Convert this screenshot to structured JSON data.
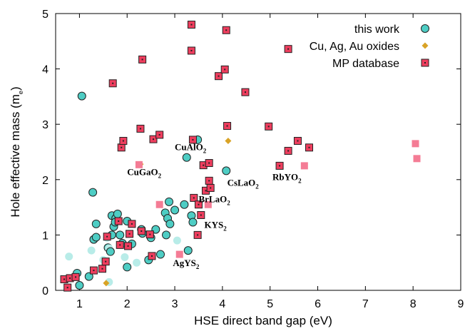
{
  "chart_data": {
    "type": "scatter",
    "xlabel": "HSE direct band gap (eV)",
    "ylabel": "Hole effective mass (m",
    "ylabel_sub": "e",
    "ylabel_close": ")",
    "xlim": [
      0.5,
      9
    ],
    "ylim": [
      0,
      5
    ],
    "xticks": [
      "1",
      "2",
      "3",
      "4",
      "5",
      "6",
      "7",
      "8",
      "9"
    ],
    "yticks": [
      "0",
      "1",
      "2",
      "3",
      "4",
      "5"
    ],
    "legend_position": "top-right",
    "colors": {
      "this_work": "#4ecdc4",
      "this_work_faint": "#b8ece8",
      "oxides": "#d9a326",
      "mp": "#ee3e5e",
      "mp_faint": "#f47c95",
      "outline": "#222222"
    },
    "series": [
      {
        "name": "this work",
        "marker": "circle",
        "points": [
          [
            1.05,
            3.51
          ],
          [
            1.28,
            1.77
          ],
          [
            0.78,
            0.61
          ],
          [
            0.95,
            0.31
          ],
          [
            1.0,
            0.09
          ],
          [
            1.2,
            0.25
          ],
          [
            1.25,
            0.72
          ],
          [
            1.3,
            0.92
          ],
          [
            1.35,
            0.96
          ],
          [
            1.35,
            1.2
          ],
          [
            1.6,
            0.77
          ],
          [
            1.62,
            0.76
          ],
          [
            1.65,
            0.7
          ],
          [
            1.68,
            1.35
          ],
          [
            1.72,
            1.15
          ],
          [
            1.76,
            1.3
          ],
          [
            1.8,
            1.38
          ],
          [
            1.75,
            1.23
          ],
          [
            1.9,
            0.85
          ],
          [
            2.0,
            0.42
          ],
          [
            2.1,
            0.84
          ],
          [
            2.3,
            1.1
          ],
          [
            2.32,
            1.03
          ],
          [
            2.45,
            0.55
          ],
          [
            2.7,
            0.65
          ],
          [
            2.8,
            1.4
          ],
          [
            2.82,
            1.0
          ],
          [
            2.85,
            1.3
          ],
          [
            2.88,
            1.6
          ],
          [
            2.9,
            1.2
          ],
          [
            3.0,
            1.45
          ],
          [
            3.2,
            1.55
          ],
          [
            3.25,
            2.4
          ],
          [
            3.28,
            0.72
          ],
          [
            3.35,
            1.35
          ],
          [
            3.38,
            1.23
          ],
          [
            3.48,
            2.72
          ],
          [
            4.08,
            2.16
          ],
          [
            1.68,
            1.0
          ],
          [
            1.58,
            0.95
          ],
          [
            2.0,
            1.25
          ],
          [
            1.95,
            0.6
          ],
          [
            2.2,
            0.5
          ],
          [
            2.5,
            0.95
          ],
          [
            1.5,
            0.55
          ],
          [
            3.05,
            0.9
          ],
          [
            1.62,
            0.15
          ],
          [
            1.85,
            1.0
          ],
          [
            2.6,
            1.1
          ]
        ]
      },
      {
        "name": "Cu, Ag, Au oxides",
        "marker": "diamond",
        "points": [
          [
            1.56,
            0.13
          ],
          [
            4.12,
            2.7
          ],
          [
            2.28,
            2.28
          ]
        ]
      },
      {
        "name": "MP database",
        "marker": "square",
        "points": [
          [
            0.68,
            0.2
          ],
          [
            0.75,
            0.05
          ],
          [
            0.8,
            0.22
          ],
          [
            0.92,
            0.24
          ],
          [
            1.3,
            0.36
          ],
          [
            1.48,
            0.39
          ],
          [
            1.55,
            0.52
          ],
          [
            1.58,
            0.97
          ],
          [
            1.7,
            3.74
          ],
          [
            1.82,
            1.25
          ],
          [
            1.85,
            0.82
          ],
          [
            1.88,
            2.58
          ],
          [
            1.92,
            2.7
          ],
          [
            2.02,
            0.8
          ],
          [
            2.05,
            1.02
          ],
          [
            2.1,
            1.2
          ],
          [
            2.25,
            2.27
          ],
          [
            2.28,
            2.92
          ],
          [
            2.3,
            1.07
          ],
          [
            2.32,
            4.17
          ],
          [
            2.48,
            1.01
          ],
          [
            2.52,
            0.62
          ],
          [
            2.55,
            2.73
          ],
          [
            2.68,
            2.81
          ],
          [
            2.68,
            1.55
          ],
          [
            3.1,
            0.65
          ],
          [
            3.35,
            4.8
          ],
          [
            3.35,
            4.33
          ],
          [
            3.38,
            2.72
          ],
          [
            3.4,
            1.67
          ],
          [
            3.48,
            1.0
          ],
          [
            3.5,
            1.55
          ],
          [
            3.55,
            1.36
          ],
          [
            3.6,
            2.26
          ],
          [
            3.65,
            1.8
          ],
          [
            3.7,
            1.55
          ],
          [
            3.72,
            2.3
          ],
          [
            3.72,
            1.98
          ],
          [
            3.75,
            1.85
          ],
          [
            3.92,
            3.87
          ],
          [
            4.05,
            3.99
          ],
          [
            4.08,
            4.7
          ],
          [
            4.1,
            2.97
          ],
          [
            4.48,
            3.58
          ],
          [
            4.97,
            2.96
          ],
          [
            5.2,
            2.25
          ],
          [
            5.38,
            4.36
          ],
          [
            5.38,
            2.52
          ],
          [
            5.58,
            2.7
          ],
          [
            5.82,
            2.58
          ],
          [
            5.72,
            2.25
          ],
          [
            8.05,
            2.65
          ],
          [
            8.08,
            2.38
          ]
        ],
        "faint_indices": [
          50,
          51,
          52,
          35,
          16,
          24,
          25
        ]
      }
    ],
    "annotations": [
      {
        "base": "CuAlO",
        "sub": "2",
        "x": 3.0,
        "y": 2.53
      },
      {
        "base": "CuGaO",
        "sub": "2",
        "x": 2.0,
        "y": 2.08
      },
      {
        "base": "CsLaO",
        "sub": "2",
        "x": 4.1,
        "y": 1.89
      },
      {
        "base": "RbYO",
        "sub": "2",
        "x": 5.05,
        "y": 1.99
      },
      {
        "base": "BrLaO",
        "sub": "2",
        "x": 3.5,
        "y": 1.59
      },
      {
        "base": "KYS",
        "sub": "2",
        "x": 3.62,
        "y": 1.13
      },
      {
        "base": "AgYS",
        "sub": "2",
        "x": 2.96,
        "y": 0.44
      }
    ]
  }
}
